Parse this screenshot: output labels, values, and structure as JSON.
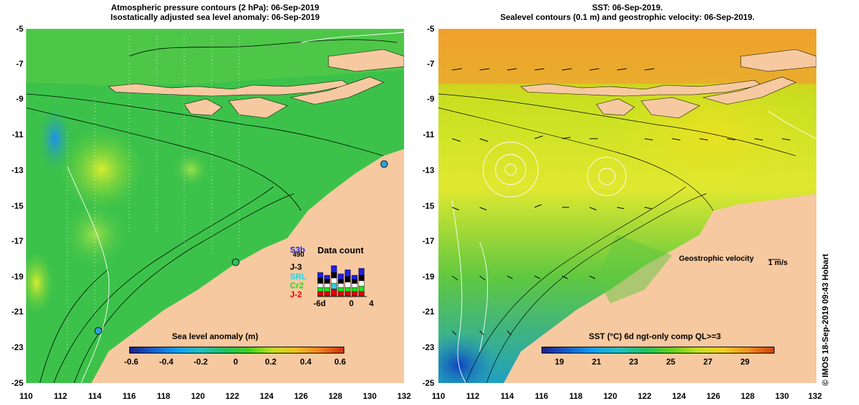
{
  "left_panel": {
    "title_line1": "Atmospheric pressure contours (2 hPa): 06-Sep-2019",
    "title_line2": "Isostatically adjusted sea level anomaly: 06-Sep-2019",
    "colorbar_title": "Sea level anomaly (m)",
    "colorbar_ticks": [
      "-0.6",
      "-0.4",
      "-0.2",
      "0",
      "0.2",
      "0.4",
      "0.6"
    ],
    "data_count": {
      "title": "Data count",
      "satellites": [
        {
          "label": "S3b",
          "color": "#2020e0"
        },
        {
          "label": "490",
          "color": "#000000"
        },
        {
          "label": "J-3",
          "color": "#000000"
        },
        {
          "label": "SRL",
          "color": "#30d0e0"
        },
        {
          "label": "Cr2",
          "color": "#20e020"
        },
        {
          "label": "J-2",
          "color": "#e00000"
        }
      ],
      "axis_ticks": [
        "-6d",
        "0",
        "4"
      ]
    }
  },
  "right_panel": {
    "title_line1": "SST: 06-Sep-2019.",
    "title_line2": "Sealevel contours (0.1 m) and geostrophic velocity: 06-Sep-2019.",
    "colorbar_title": "SST (°C) 6d ngt-only comp QL>=3",
    "colorbar_ticks": [
      "19",
      "21",
      "23",
      "25",
      "27",
      "29"
    ],
    "velocity_label": "Geostrophic velocity",
    "velocity_scale": "1 m/s"
  },
  "axes": {
    "lat_ticks": [
      "-5",
      "-7",
      "-9",
      "-11",
      "-13",
      "-15",
      "-17",
      "-19",
      "-21",
      "-23",
      "-25"
    ],
    "lon_ticks": [
      "110",
      "112",
      "114",
      "116",
      "118",
      "120",
      "122",
      "124",
      "126",
      "128",
      "130",
      "132"
    ]
  },
  "credit": "© IMOS 18-Sep-2019 09:43 Hobart",
  "colors": {
    "land": "#f7c9a0",
    "ocean_left": "#3cc24a",
    "ocean_right": "#a8e020"
  }
}
